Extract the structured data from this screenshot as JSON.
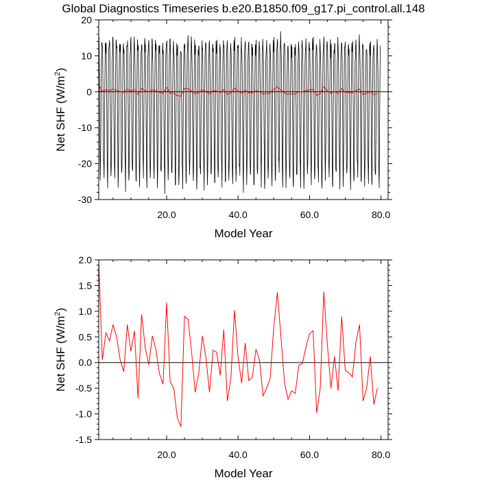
{
  "title": "Global Diagnostics Timeseries b.e20.B1850.f09_g17.pi_control.all.148",
  "colors": {
    "axis": "#000000",
    "monthly": "#000000",
    "annual": "#ff0000",
    "zero_line": "#000000"
  },
  "chart_data": [
    {
      "type": "line",
      "xlabel": "Model Year",
      "ylabel_main": "Net SHF (W/m",
      "ylabel_sup": "2",
      "ylabel_close": ")",
      "xlim": [
        1,
        82
      ],
      "ylim": [
        -30,
        20
      ],
      "xticks": [
        20,
        40,
        60,
        80
      ],
      "xtick_labels": [
        "20.0",
        "40.0",
        "60.0",
        "80.0"
      ],
      "yticks": [
        -30,
        -20,
        -10,
        0,
        10,
        20
      ],
      "ytick_labels": [
        "-30",
        "-20",
        "-10",
        "0",
        "10",
        "20"
      ],
      "reference_line": 0,
      "series": [
        {
          "role": "monthly",
          "monthly_climatology": [
            12.5,
            12.0,
            4.0,
            -6.0,
            -18.0,
            -23.5,
            -24.0,
            -14.0,
            -2.0,
            7.5,
            12.0,
            13.0
          ],
          "annual_anomaly": [
            1.98,
            0.05,
            0.58,
            0.42,
            0.74,
            0.5,
            0.05,
            -0.18,
            0.74,
            0.22,
            0.62,
            -0.7,
            0.94,
            0.3,
            -0.05,
            0.52,
            0.25,
            -0.22,
            -0.42,
            1.17,
            -0.38,
            -0.5,
            -1.08,
            -1.25,
            0.9,
            0.84,
            0.2,
            -0.58,
            -0.2,
            0.52,
            0.1,
            -0.58,
            0.24,
            0.2,
            -0.25,
            0.64,
            -0.75,
            -0.3,
            1.02,
            0.1,
            -0.4,
            0.38,
            -0.35,
            -0.28,
            0.26,
            0.05,
            -0.65,
            -0.5,
            -0.3,
            0.7,
            1.37,
            0.5,
            -0.4,
            -0.72,
            -0.55,
            -0.6,
            -0.05,
            -0.02,
            0.3,
            0.56,
            0.62,
            -0.98,
            -0.5,
            1.38,
            0.35,
            -0.5,
            0.12,
            -0.55,
            0.9,
            -0.15,
            -0.2,
            -0.28,
            0.4,
            0.74,
            -0.75,
            -0.5,
            0.12,
            -0.82,
            -0.5
          ]
        },
        {
          "role": "annual",
          "x": [
            1,
            2,
            3,
            4,
            5,
            6,
            7,
            8,
            9,
            10,
            11,
            12,
            13,
            14,
            15,
            16,
            17,
            18,
            19,
            20,
            21,
            22,
            23,
            24,
            25,
            26,
            27,
            28,
            29,
            30,
            31,
            32,
            33,
            34,
            35,
            36,
            37,
            38,
            39,
            40,
            41,
            42,
            43,
            44,
            45,
            46,
            47,
            48,
            49,
            50,
            51,
            52,
            53,
            54,
            55,
            56,
            57,
            58,
            59,
            60,
            61,
            62,
            63,
            64,
            65,
            66,
            67,
            68,
            69,
            70,
            71,
            72,
            73,
            74,
            75,
            76,
            77,
            78,
            79
          ]
        }
      ]
    },
    {
      "type": "line",
      "xlabel": "Model Year",
      "ylabel_main": "Net SHF (W/m",
      "ylabel_sup": "2",
      "ylabel_close": ")",
      "xlim": [
        1,
        82
      ],
      "ylim": [
        -1.5,
        2.0
      ],
      "xticks": [
        20,
        40,
        60,
        80
      ],
      "xtick_labels": [
        "20.0",
        "40.0",
        "60.0",
        "80.0"
      ],
      "yticks": [
        -1.5,
        -1.0,
        -0.5,
        0.0,
        0.5,
        1.0,
        1.5,
        2.0
      ],
      "ytick_labels": [
        "-1.5",
        "-1.0",
        "-0.5",
        "0.0",
        "0.5",
        "1.0",
        "1.5",
        "2.0"
      ],
      "reference_line": 0,
      "series": [
        {
          "role": "annual",
          "x": [
            1,
            2,
            3,
            4,
            5,
            6,
            7,
            8,
            9,
            10,
            11,
            12,
            13,
            14,
            15,
            16,
            17,
            18,
            19,
            20,
            21,
            22,
            23,
            24,
            25,
            26,
            27,
            28,
            29,
            30,
            31,
            32,
            33,
            34,
            35,
            36,
            37,
            38,
            39,
            40,
            41,
            42,
            43,
            44,
            45,
            46,
            47,
            48,
            49,
            50,
            51,
            52,
            53,
            54,
            55,
            56,
            57,
            58,
            59,
            60,
            61,
            62,
            63,
            64,
            65,
            66,
            67,
            68,
            69,
            70,
            71,
            72,
            73,
            74,
            75,
            76,
            77,
            78,
            79
          ],
          "values": [
            1.98,
            0.05,
            0.58,
            0.42,
            0.74,
            0.5,
            0.05,
            -0.18,
            0.74,
            0.22,
            0.62,
            -0.7,
            0.94,
            0.3,
            -0.05,
            0.52,
            0.25,
            -0.22,
            -0.42,
            1.17,
            -0.38,
            -0.5,
            -1.08,
            -1.25,
            0.9,
            0.84,
            0.2,
            -0.58,
            -0.2,
            0.52,
            0.1,
            -0.58,
            0.24,
            0.2,
            -0.25,
            0.64,
            -0.75,
            -0.3,
            1.02,
            0.1,
            -0.4,
            0.38,
            -0.35,
            -0.28,
            0.26,
            0.05,
            -0.65,
            -0.5,
            -0.3,
            0.7,
            1.37,
            0.5,
            -0.4,
            -0.72,
            -0.55,
            -0.6,
            -0.05,
            -0.02,
            0.3,
            0.56,
            0.62,
            -0.98,
            -0.5,
            1.38,
            0.35,
            -0.5,
            0.12,
            -0.55,
            0.9,
            -0.15,
            -0.2,
            -0.28,
            0.4,
            0.74,
            -0.75,
            -0.5,
            0.12,
            -0.82,
            -0.5
          ]
        }
      ]
    }
  ]
}
